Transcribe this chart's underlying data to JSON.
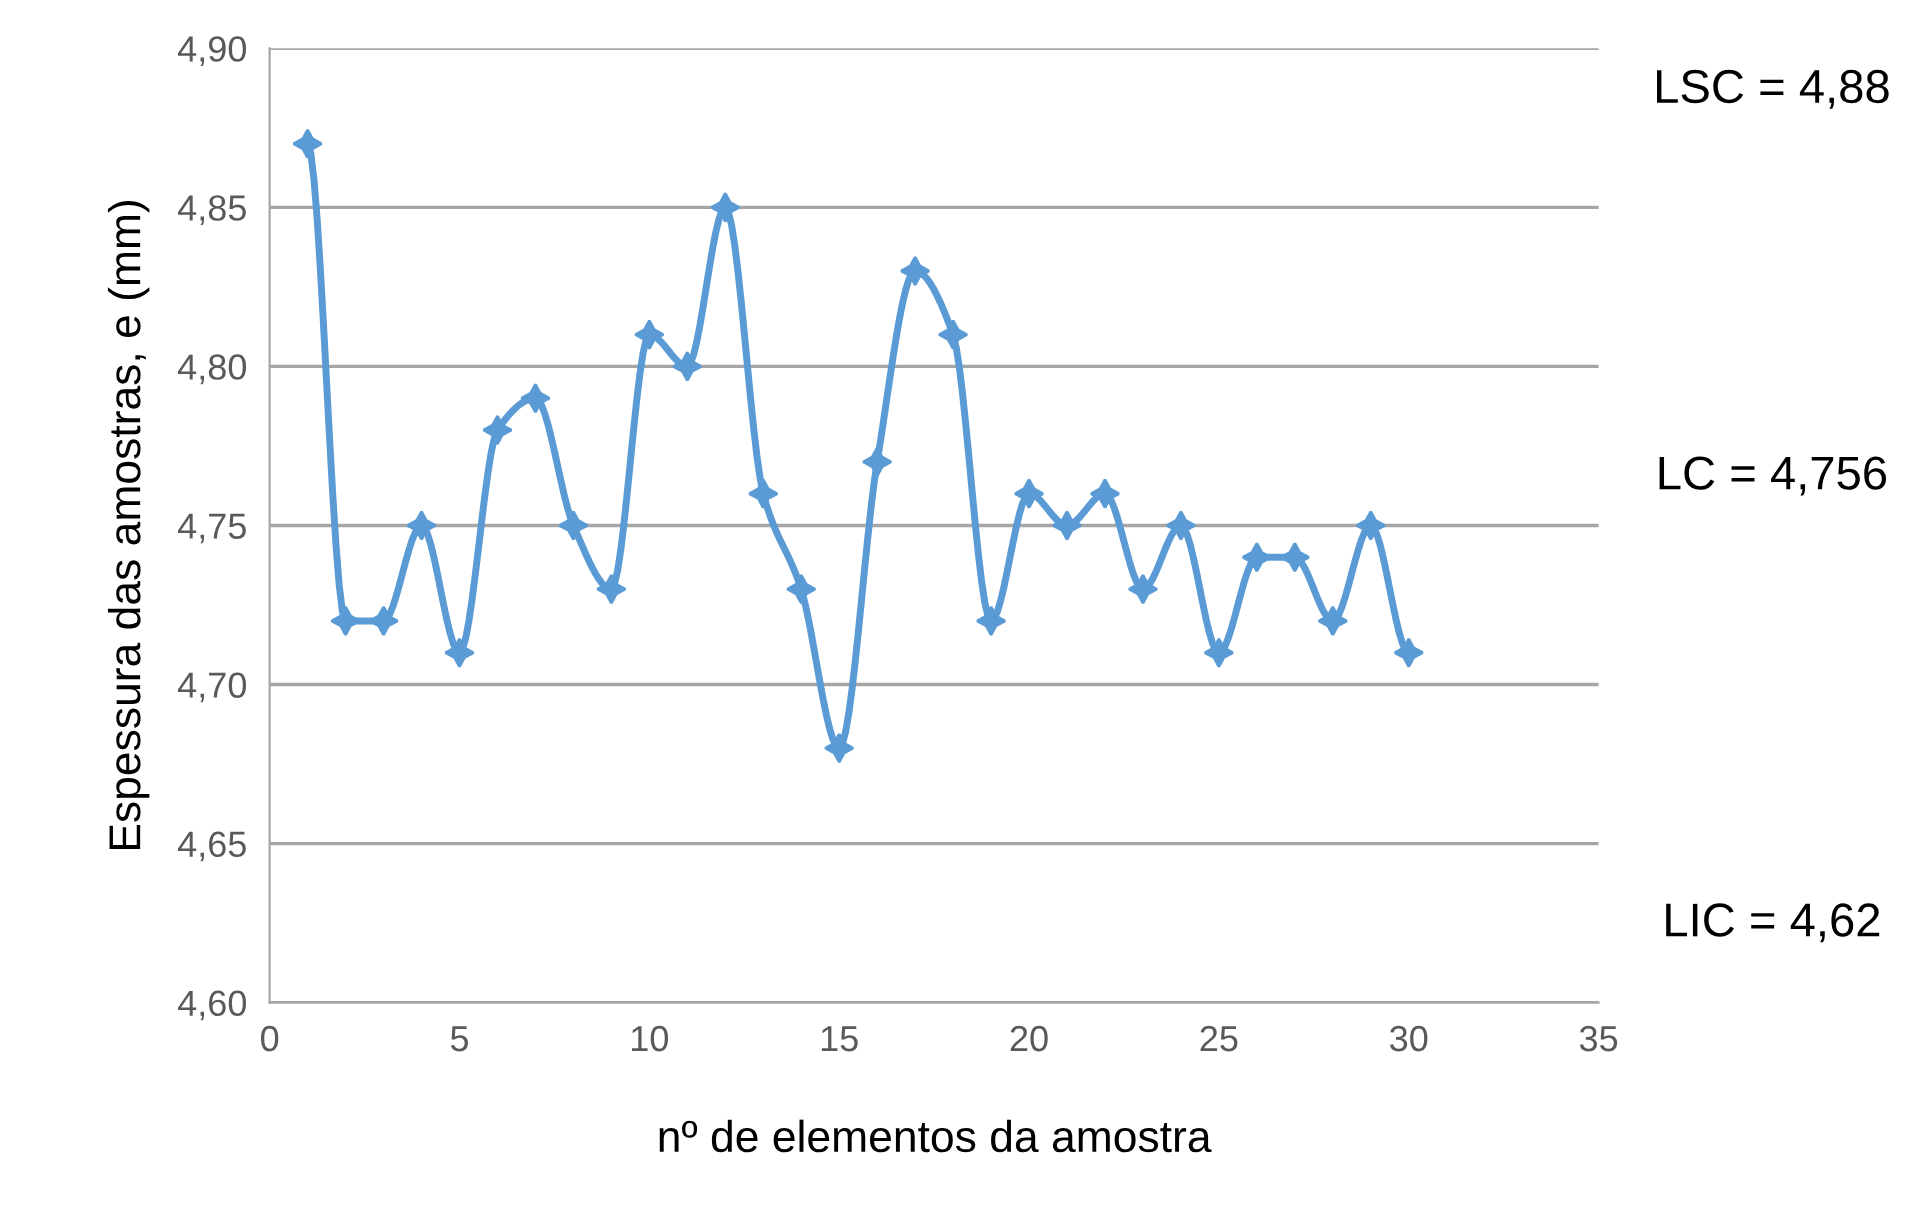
{
  "chart_data": {
    "type": "line",
    "xlabel": "nº de elementos da amostra",
    "ylabel": "Espessura das amostras, e (mm)",
    "x": [
      1,
      2,
      3,
      4,
      5,
      6,
      7,
      8,
      9,
      10,
      11,
      12,
      13,
      14,
      15,
      16,
      17,
      18,
      19,
      20,
      21,
      22,
      23,
      24,
      25,
      26,
      27,
      28,
      29,
      30
    ],
    "series": [
      {
        "color": "#5b9bd5",
        "values": [
          4.87,
          4.72,
          4.72,
          4.75,
          4.71,
          4.78,
          4.79,
          4.75,
          4.73,
          4.81,
          4.8,
          4.85,
          4.76,
          4.73,
          4.68,
          4.77,
          4.83,
          4.81,
          4.72,
          4.76,
          4.75,
          4.76,
          4.73,
          4.75,
          4.71,
          4.74,
          4.74,
          4.72,
          4.75,
          4.71
        ]
      }
    ],
    "xlim": [
      0,
      35
    ],
    "xticks": [
      0,
      5,
      10,
      15,
      20,
      25,
      30,
      35
    ],
    "ylim": [
      4.6,
      4.9
    ],
    "yticks": [
      {
        "value": 4.6,
        "label": "4,60"
      },
      {
        "value": 4.65,
        "label": "4,65"
      },
      {
        "value": 4.7,
        "label": "4,70"
      },
      {
        "value": 4.75,
        "label": "4,75"
      },
      {
        "value": 4.8,
        "label": "4,80"
      },
      {
        "value": 4.85,
        "label": "4,85"
      },
      {
        "value": 4.9,
        "label": "4,90"
      }
    ],
    "annotations": [
      "LSC = 4,88",
      "LC = 4,756",
      "LIC = 4,62"
    ],
    "grid": "y",
    "marker": "star",
    "line_style": "solid",
    "legend": false
  }
}
